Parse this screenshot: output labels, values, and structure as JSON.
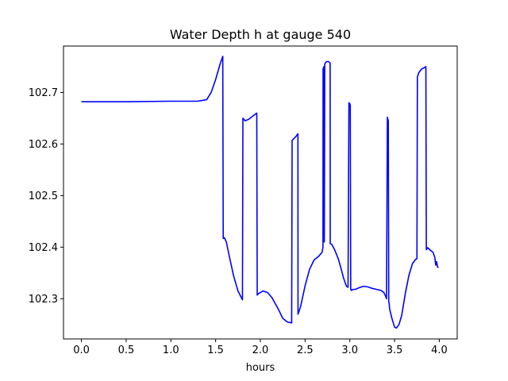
{
  "chart_data": {
    "type": "line",
    "title": "Water Depth h at gauge 540",
    "xlabel": "hours",
    "ylabel": "",
    "xlim": [
      -0.2,
      4.2
    ],
    "ylim": [
      102.222,
      102.79
    ],
    "xticks": [
      0.0,
      0.5,
      1.0,
      1.5,
      2.0,
      2.5,
      3.0,
      3.5,
      4.0
    ],
    "xtick_labels": [
      "0.0",
      "0.5",
      "1.0",
      "1.5",
      "2.0",
      "2.5",
      "3.0",
      "3.5",
      "4.0"
    ],
    "yticks": [
      102.3,
      102.4,
      102.5,
      102.6,
      102.7
    ],
    "ytick_labels": [
      "102.3",
      "102.4",
      "102.5",
      "102.6",
      "102.7"
    ],
    "grid": false,
    "series": [
      {
        "color": "#0000ff",
        "x": [
          0.0,
          0.5,
          1.0,
          1.3,
          1.4,
          1.45,
          1.5,
          1.55,
          1.58,
          1.585,
          1.6,
          1.62,
          1.65,
          1.7,
          1.75,
          1.8,
          1.805,
          1.83,
          1.87,
          1.93,
          1.96,
          1.965,
          1.98,
          2.0,
          2.03,
          2.08,
          2.13,
          2.2,
          2.25,
          2.3,
          2.35,
          2.355,
          2.4,
          2.42,
          2.421,
          2.45,
          2.5,
          2.55,
          2.6,
          2.65,
          2.69,
          2.7,
          2.701,
          2.71,
          2.715,
          2.72,
          2.73,
          2.74,
          2.75,
          2.76,
          2.78,
          2.781,
          2.8,
          2.83,
          2.87,
          2.9,
          2.93,
          2.96,
          2.98,
          2.99,
          3.0,
          3.005,
          3.01,
          3.02,
          3.03,
          3.06,
          3.1,
          3.15,
          3.2,
          3.25,
          3.3,
          3.35,
          3.38,
          3.4,
          3.41,
          3.42,
          3.425,
          3.43,
          3.435,
          3.44,
          3.445,
          3.47,
          3.5,
          3.52,
          3.55,
          3.58,
          3.62,
          3.66,
          3.7,
          3.73,
          3.75,
          3.755,
          3.77,
          3.8,
          3.83,
          3.85,
          3.855,
          3.87,
          3.9,
          3.93,
          3.95,
          3.96,
          3.97,
          3.98,
          3.99
        ],
        "y": [
          102.682,
          102.682,
          102.683,
          102.683,
          102.686,
          102.7,
          102.725,
          102.755,
          102.77,
          102.417,
          102.418,
          102.41,
          102.385,
          102.345,
          102.315,
          102.298,
          102.65,
          102.645,
          102.648,
          102.656,
          102.66,
          102.307,
          102.31,
          102.312,
          102.315,
          102.312,
          102.302,
          102.28,
          102.262,
          102.255,
          102.253,
          102.607,
          102.615,
          102.62,
          102.27,
          102.285,
          102.325,
          102.357,
          102.375,
          102.382,
          102.39,
          102.4,
          102.745,
          102.75,
          102.41,
          102.755,
          102.758,
          102.76,
          102.76,
          102.76,
          102.757,
          102.407,
          102.405,
          102.395,
          102.378,
          102.36,
          102.34,
          102.325,
          102.322,
          102.68,
          102.678,
          102.675,
          102.318,
          102.316,
          102.318,
          102.318,
          102.321,
          102.324,
          102.323,
          102.32,
          102.318,
          102.316,
          102.312,
          102.305,
          102.3,
          102.652,
          102.648,
          102.645,
          102.295,
          102.29,
          102.28,
          102.262,
          102.245,
          102.243,
          102.25,
          102.268,
          102.31,
          102.345,
          102.368,
          102.375,
          102.378,
          102.73,
          102.738,
          102.745,
          102.748,
          102.75,
          102.395,
          102.399,
          102.394,
          102.39,
          102.38,
          102.365,
          102.372,
          102.362,
          102.36
        ]
      }
    ]
  }
}
